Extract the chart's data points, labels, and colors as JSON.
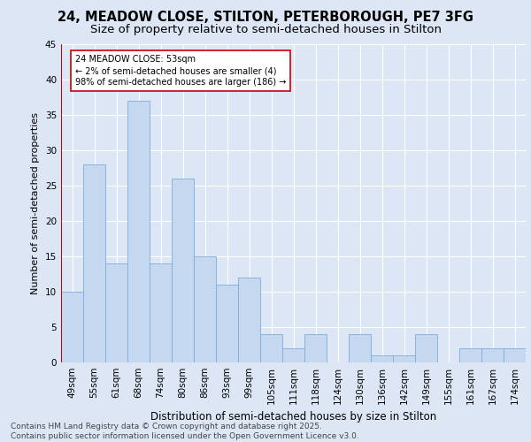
{
  "title1": "24, MEADOW CLOSE, STILTON, PETERBOROUGH, PE7 3FG",
  "title2": "Size of property relative to semi-detached houses in Stilton",
  "xlabel": "Distribution of semi-detached houses by size in Stilton",
  "ylabel": "Number of semi-detached properties",
  "categories": [
    "49sqm",
    "55sqm",
    "61sqm",
    "68sqm",
    "74sqm",
    "80sqm",
    "86sqm",
    "93sqm",
    "99sqm",
    "105sqm",
    "111sqm",
    "118sqm",
    "124sqm",
    "130sqm",
    "136sqm",
    "142sqm",
    "149sqm",
    "155sqm",
    "161sqm",
    "167sqm",
    "174sqm"
  ],
  "values": [
    10,
    28,
    14,
    37,
    14,
    26,
    15,
    11,
    12,
    4,
    2,
    4,
    0,
    4,
    1,
    1,
    4,
    0,
    2,
    2,
    2
  ],
  "bar_color": "#c5d8f0",
  "bar_edge_color": "#7aaedb",
  "highlight_line_color": "#cc0000",
  "annotation_line1": "24 MEADOW CLOSE: 53sqm",
  "annotation_line2": "← 2% of semi-detached houses are smaller (4)",
  "annotation_line3": "98% of semi-detached houses are larger (186) →",
  "annotation_box_color": "white",
  "annotation_box_edge_color": "#cc0000",
  "background_color": "#dce6f5",
  "ylim": [
    0,
    45
  ],
  "yticks": [
    0,
    5,
    10,
    15,
    20,
    25,
    30,
    35,
    40,
    45
  ],
  "footer1": "Contains HM Land Registry data © Crown copyright and database right 2025.",
  "footer2": "Contains public sector information licensed under the Open Government Licence v3.0.",
  "title1_fontsize": 10.5,
  "title2_fontsize": 9.5,
  "xlabel_fontsize": 8.5,
  "ylabel_fontsize": 8,
  "tick_fontsize": 7.5,
  "footer_fontsize": 6.5
}
